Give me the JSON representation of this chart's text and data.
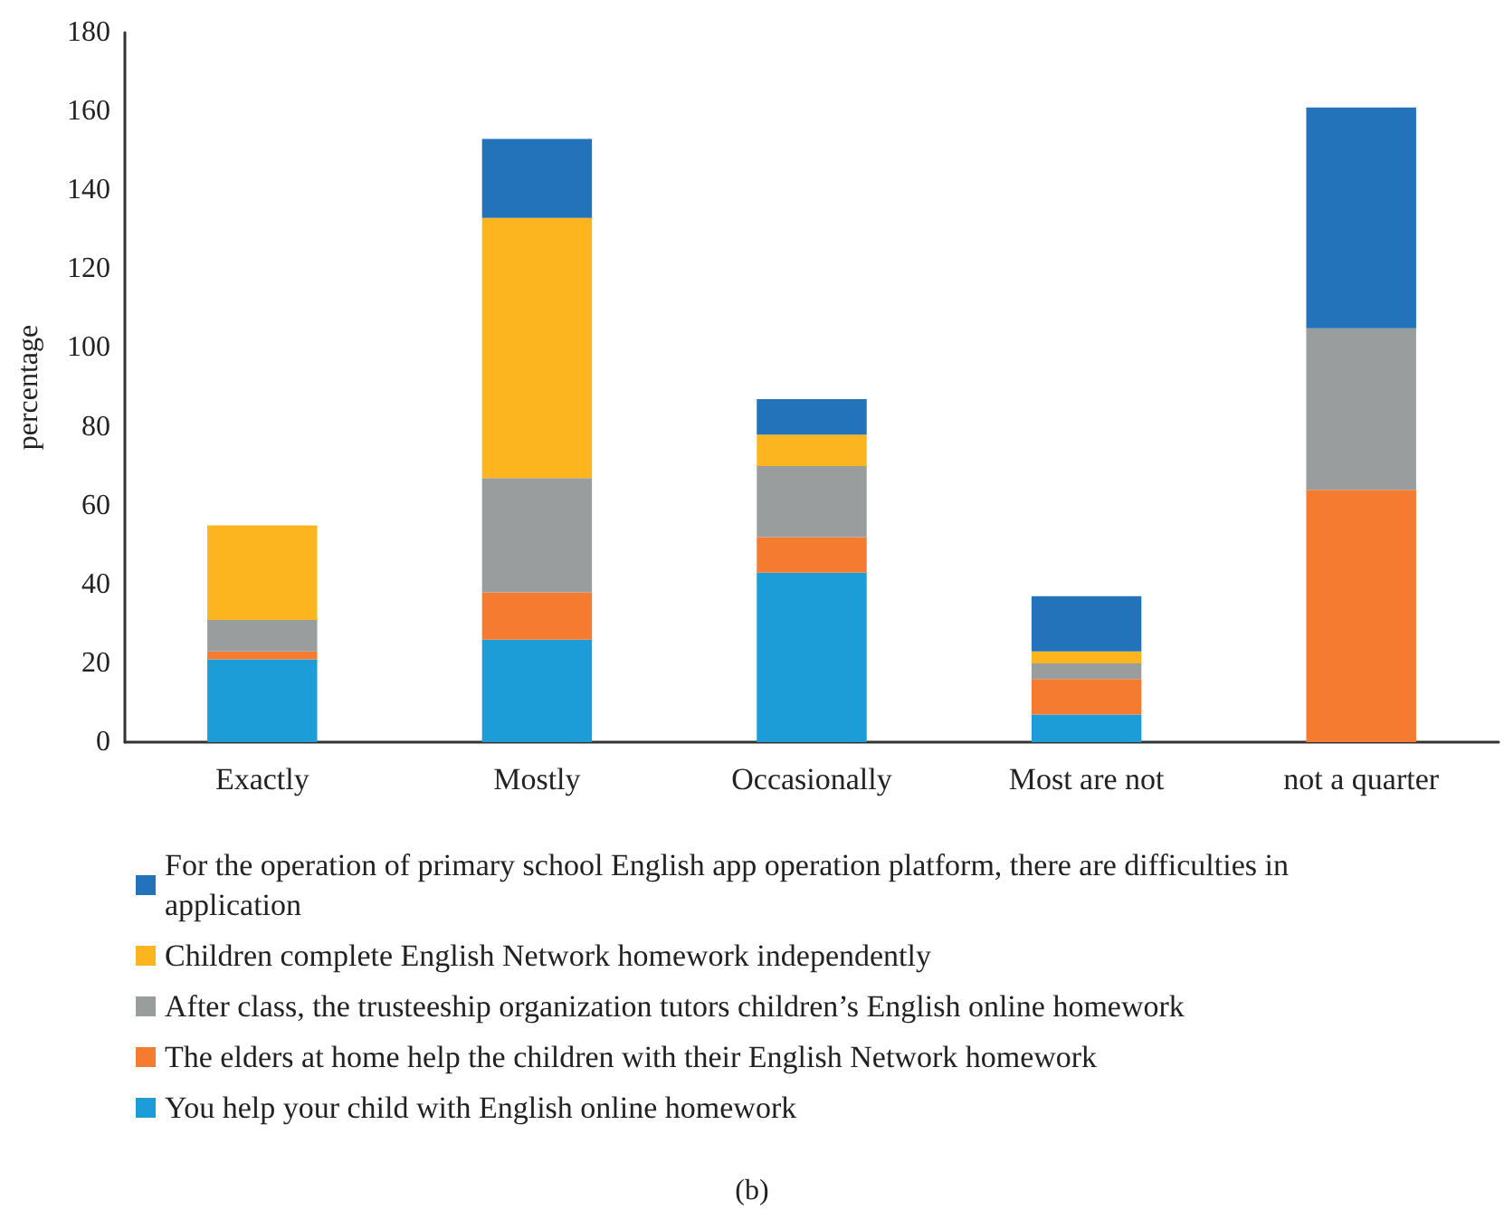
{
  "chart_data": {
    "type": "bar",
    "stacked": true,
    "ylabel": "percentage",
    "categories": [
      "Exactly",
      "Mostly",
      "Occasionally",
      "Most are not",
      "not a quarter"
    ],
    "series": [
      {
        "name": "You help your child with English online homework",
        "color": "#1c9dd8",
        "values": [
          21,
          26,
          43,
          7,
          0
        ]
      },
      {
        "name": "The elders at home help the children with their English Network homework",
        "color": "#f47b30",
        "values": [
          2,
          12,
          9,
          9,
          64
        ]
      },
      {
        "name": "After class, the trusteeship organization tutors children’s English online homework",
        "color": "#9a9d9e",
        "values": [
          8,
          29,
          18,
          4,
          41
        ]
      },
      {
        "name": "Children complete English Network homework independently",
        "color": "#fcb51e",
        "values": [
          24,
          66,
          8,
          3,
          0
        ]
      },
      {
        "name": "For the operation of primary school English app operation platform, there are difficulties in application",
        "color": "#2273ba",
        "values": [
          0,
          20,
          9,
          14,
          56
        ]
      }
    ],
    "ylim": [
      0,
      180
    ],
    "yticks": [
      0,
      20,
      40,
      60,
      80,
      100,
      120,
      140,
      160,
      180
    ],
    "grid": false,
    "legend": "bottom",
    "annotations": [
      "(b)"
    ]
  }
}
